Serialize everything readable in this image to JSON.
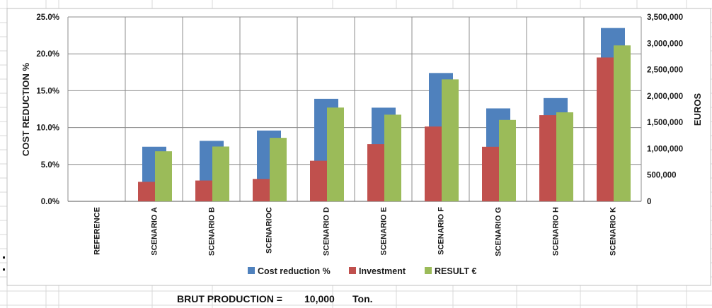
{
  "colors": {
    "cost_reduction": "#4F81BD",
    "investment": "#C0504D",
    "result": "#9BBB59",
    "gridline": "#8c8c8c",
    "sheet_grid": "#d9d9d9"
  },
  "chart_data": {
    "type": "bar",
    "categories": [
      "REFERENCE",
      "SCENARIO A",
      "SCENARIO B",
      "SCENARIO C",
      "SCENARIO D",
      "SCENARIO E",
      "SCENARIO F",
      "SCENARIO G",
      "SCENARIO H",
      "SCENARIO K"
    ],
    "category_labels": [
      "REFERENCE",
      "SCENARIO A",
      "SCENARIO B",
      "SCENARIOC",
      "SCENARIO D",
      "SCENARIO E",
      "SCENARIO F",
      "SCENARIO G",
      "SCENARIO H",
      "SCENARIO K"
    ],
    "series": [
      {
        "name": "Cost reduction %",
        "axis": "left",
        "values": [
          0,
          7.4,
          8.2,
          9.6,
          13.9,
          12.7,
          17.4,
          12.6,
          14.0,
          23.5
        ]
      },
      {
        "name": "Investment",
        "axis": "right",
        "values": [
          0,
          370000,
          395000,
          425000,
          770000,
          1085000,
          1420000,
          1035000,
          1635000,
          2730000
        ]
      },
      {
        "name": "RESULT €",
        "axis": "right",
        "values": [
          0,
          950000,
          1040000,
          1205000,
          1780000,
          1645000,
          2315000,
          1545000,
          1690000,
          2960000
        ]
      }
    ],
    "ylabel": "COST REDUCTION %",
    "ylabel_right": "EUROS",
    "ylim": [
      0,
      25
    ],
    "ylim_right": [
      0,
      3500000
    ],
    "yticks": [
      "0.0%",
      "5.0%",
      "10.0%",
      "15.0%",
      "20.0%",
      "25.0%"
    ],
    "yticks_right": [
      "0",
      "500,000",
      "1,000,000",
      "1,500,000",
      "2,000,000",
      "2,500,000",
      "3,000,000",
      "3,500,000"
    ],
    "grid": true,
    "legend_position": "bottom"
  },
  "footer": {
    "label": "BRUT PRODUCTION =",
    "value": "10,000",
    "unit": "Ton."
  }
}
